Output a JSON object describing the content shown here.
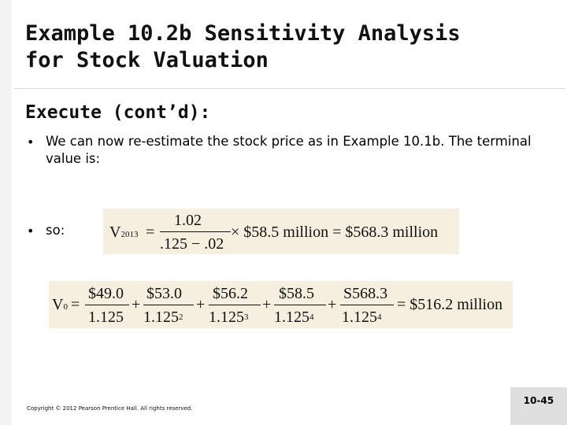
{
  "slide": {
    "title_line1": "Example 10.2b  Sensitivity Analysis",
    "title_line2": "for Stock Valuation",
    "subheading": "Execute (cont’d):",
    "bullets": [
      {
        "marker": "•",
        "text": "We can now re-estimate the stock price as in Example 10.1b. The terminal value is:"
      },
      {
        "marker": "•",
        "text": "so:"
      }
    ],
    "copyright": "Copyright © 2012 Pearson Prentice Hall. All rights reserved.",
    "page_number": "10-45"
  },
  "equations": {
    "terminal": {
      "lhs": "V",
      "lhs_sub": "2013",
      "equals": "=",
      "numerator": "1.02",
      "denominator": ".125 − .02",
      "rest": "× $58.5 million = $568.3 million"
    },
    "value": {
      "lhs": "V",
      "lhs_sub": "0",
      "equals": "=",
      "terms": [
        {
          "num": "$49.0",
          "den": "1.125",
          "exp": ""
        },
        {
          "num": "$53.0",
          "den": "1.125",
          "exp": "2"
        },
        {
          "num": "$56.2",
          "den": "1.125",
          "exp": "3"
        },
        {
          "num": "$58.5",
          "den": "1.125",
          "exp": "4"
        },
        {
          "num": "S568.3",
          "den": "1.125",
          "exp": "4"
        }
      ],
      "plus": "+",
      "result": "= $516.2 million"
    }
  },
  "colors": {
    "equation_background": "#f6efe0",
    "page_box": "#dfdfdf"
  }
}
